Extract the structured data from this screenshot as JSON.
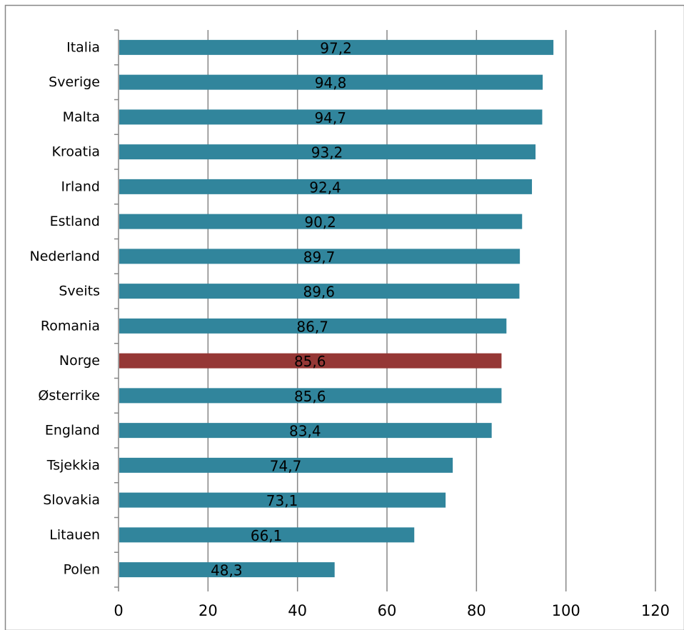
{
  "chart_data": {
    "type": "bar",
    "orientation": "horizontal",
    "categories": [
      "Italia",
      "Sverige",
      "Malta",
      "Kroatia",
      "Irland",
      "Estland",
      "Nederland",
      "Sveits",
      "Romania",
      "Norge",
      "Østerrike",
      "England",
      "Tsjekkia",
      "Slovakia",
      "Litauen",
      "Polen"
    ],
    "values": [
      97.2,
      94.8,
      94.7,
      93.2,
      92.4,
      90.2,
      89.7,
      89.6,
      86.7,
      85.6,
      85.6,
      83.4,
      74.7,
      73.1,
      66.1,
      48.3
    ],
    "data_labels": [
      "97,2",
      "94,8",
      "94,7",
      "93,2",
      "92,4",
      "90,2",
      "89,7",
      "89,6",
      "86,7",
      "85,6",
      "85,6",
      "83,4",
      "74,7",
      "73,1",
      "66,1",
      "48,3"
    ],
    "xlim": [
      0,
      120
    ],
    "x_ticks": [
      0,
      20,
      40,
      60,
      80,
      100,
      120
    ],
    "x_tick_labels": [
      "0",
      "20",
      "40",
      "60",
      "80",
      "100",
      "120"
    ],
    "grid": "vertical",
    "legend": "none",
    "title": "",
    "xlabel": "",
    "ylabel": "",
    "highlight_category": "Norge",
    "colors": {
      "bar": "#31859C",
      "highlight": "#953735",
      "grid": "#868686",
      "frame": "#868686"
    }
  }
}
